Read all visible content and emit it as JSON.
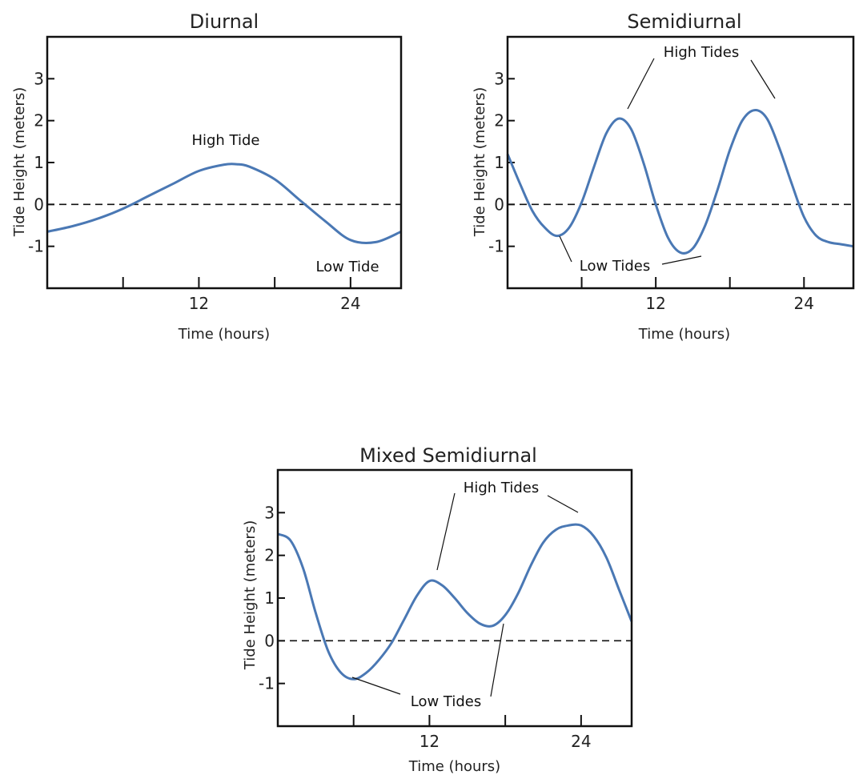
{
  "chart_data": [
    {
      "type": "line",
      "title": "Diurnal",
      "xlabel": "Time (hours)",
      "ylabel": "Tide Height (meters)",
      "xlim": [
        0,
        28
      ],
      "ylim": [
        -2,
        4
      ],
      "xticks": [
        6,
        12,
        18,
        24
      ],
      "xtick_labels": [
        "",
        "12",
        "",
        "24"
      ],
      "yticks": [
        -1,
        0,
        1,
        2,
        3
      ],
      "reference_line": 0,
      "series": [
        {
          "color": "#4a78b4",
          "x": [
            0,
            2,
            4,
            6,
            8,
            10,
            12,
            14,
            15,
            16,
            18,
            20,
            22,
            24,
            26,
            28
          ],
          "y": [
            -0.65,
            -0.52,
            -0.34,
            -0.1,
            0.2,
            0.5,
            0.8,
            0.95,
            0.96,
            0.9,
            0.6,
            0.1,
            -0.4,
            -0.85,
            -0.9,
            -0.65
          ]
        }
      ],
      "annotations": [
        {
          "text": "High Tide",
          "x": 15,
          "y": 1.45
        },
        {
          "text": "Low Tide",
          "x": 24.5,
          "y": -1.45
        }
      ]
    },
    {
      "type": "line",
      "title": "Semidiurnal",
      "xlabel": "Time (hours)",
      "ylabel": "Tide Height (meters)",
      "xlim": [
        0,
        28
      ],
      "ylim": [
        -2,
        4
      ],
      "xticks": [
        6,
        12,
        18,
        24
      ],
      "xtick_labels": [
        "",
        "12",
        "",
        "24"
      ],
      "yticks": [
        -1,
        0,
        1,
        2,
        3
      ],
      "reference_line": 0,
      "series": [
        {
          "color": "#4a78b4",
          "x": [
            0,
            1,
            2,
            3,
            4,
            5,
            6,
            7,
            8,
            9,
            10,
            11,
            12,
            13,
            14,
            15,
            16,
            17,
            18,
            19,
            20,
            21,
            22,
            23,
            24,
            25,
            26,
            27,
            28
          ],
          "y": [
            1.2,
            0.5,
            -0.15,
            -0.55,
            -0.75,
            -0.55,
            0.05,
            0.9,
            1.7,
            2.05,
            1.8,
            1.0,
            0.0,
            -0.8,
            -1.15,
            -1.05,
            -0.5,
            0.35,
            1.3,
            2.0,
            2.25,
            2.05,
            1.35,
            0.5,
            -0.3,
            -0.75,
            -0.9,
            -0.95,
            -1.0
          ]
        }
      ],
      "annotations": [
        {
          "text": "High Tides",
          "x": 15.4,
          "y": 3.35
        },
        {
          "text": "Low Tides",
          "x": 9.5,
          "y": -1.45
        }
      ]
    },
    {
      "type": "line",
      "title": "Mixed Semidiurnal",
      "xlabel": "Time (hours)",
      "ylabel": "Tide Height (meters)",
      "xlim": [
        0,
        28
      ],
      "ylim": [
        -2,
        4
      ],
      "xticks": [
        6,
        12,
        18,
        24
      ],
      "xtick_labels": [
        "",
        "12",
        "",
        "24"
      ],
      "yticks": [
        -1,
        0,
        1,
        2,
        3
      ],
      "reference_line": 0,
      "series": [
        {
          "color": "#4a78b4",
          "x": [
            0,
            1,
            2,
            3,
            4,
            5,
            6,
            7,
            8,
            9,
            10,
            11,
            12,
            13,
            14,
            15,
            16,
            17,
            18,
            19,
            20,
            21,
            22,
            23,
            24,
            25,
            26,
            27,
            28
          ],
          "y": [
            2.5,
            2.35,
            1.7,
            0.65,
            -0.25,
            -0.75,
            -0.9,
            -0.75,
            -0.45,
            -0.05,
            0.5,
            1.05,
            1.4,
            1.3,
            1.0,
            0.65,
            0.4,
            0.35,
            0.6,
            1.1,
            1.75,
            2.3,
            2.6,
            2.7,
            2.7,
            2.45,
            1.95,
            1.2,
            0.45
          ]
        }
      ],
      "annotations": [
        {
          "text": "High Tides",
          "x": 15.5,
          "y": 3.35
        },
        {
          "text": "Low Tides",
          "x": 12.3,
          "y": -1.45
        }
      ]
    }
  ]
}
